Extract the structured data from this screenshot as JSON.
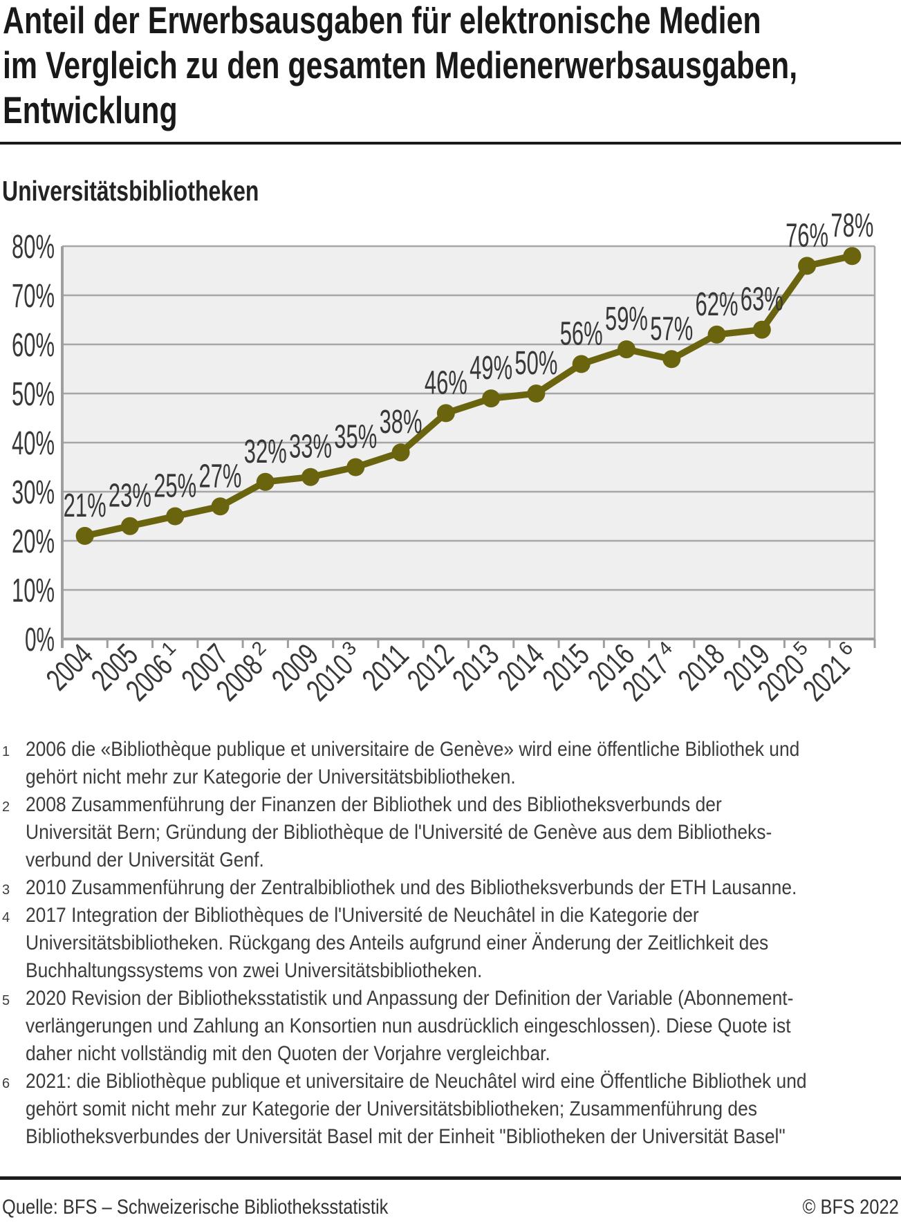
{
  "title": {
    "lines": [
      "Anteil der Erwerbsausgaben für elektronische Medien",
      "im Vergleich zu den gesamten Medienerwerbsausgaben,",
      "Entwicklung"
    ]
  },
  "subtitle": "Universitätsbibliotheken",
  "chart_data": {
    "type": "line",
    "title": "Universitätsbibliotheken",
    "categories": [
      "2004",
      "2005",
      "2006",
      "2007",
      "2008",
      "2009",
      "2010",
      "2011",
      "2012",
      "2013",
      "2014",
      "2015",
      "2016",
      "2017",
      "2018",
      "2019",
      "2020",
      "2021"
    ],
    "category_superscripts": {
      "2006": "1",
      "2008": "2",
      "2010": "3",
      "2017": "4",
      "2020": "5",
      "2021": "6"
    },
    "series": [
      {
        "name": "Universitätsbibliotheken",
        "values": [
          21,
          23,
          25,
          27,
          32,
          33,
          35,
          38,
          46,
          49,
          50,
          56,
          59,
          57,
          62,
          63,
          76,
          78
        ]
      }
    ],
    "data_labels": [
      "21%",
      "23%",
      "25%",
      "27%",
      "32%",
      "33%",
      "35%",
      "38%",
      "46%",
      "49%",
      "50%",
      "56%",
      "59%",
      "57%",
      "62%",
      "63%",
      "76%",
      "78%"
    ],
    "unit": "%",
    "xlabel": "",
    "ylabel": "",
    "ylim": [
      0,
      80
    ],
    "ytick_step": 10,
    "yticks": [
      "0%",
      "10%",
      "20%",
      "30%",
      "40%",
      "50%",
      "60%",
      "70%",
      "80%"
    ],
    "grid": "horizontal",
    "legend": "none",
    "colors": {
      "line": "#6b640f",
      "plot_bg": "#efefef",
      "grid": "#a6a6a6",
      "axis": "#9e9e9e",
      "label_text": "#383838"
    }
  },
  "footnotes": [
    {
      "num": "1",
      "lines": [
        "2006 die «Bibliothèque publique et universitaire de Genève» wird eine öffentliche Bibliothek und",
        "gehört nicht mehr zur Kategorie der Universitätsbibliotheken."
      ]
    },
    {
      "num": "2",
      "lines": [
        "2008 Zusammenführung der Finanzen der Bibliothek und des Bibliotheksverbunds der",
        "Universität Bern; Gründung der Bibliothèque de l'Université de Genève aus dem Bibliotheks-",
        "verbund der Universität Genf."
      ]
    },
    {
      "num": "3",
      "lines": [
        "2010 Zusammenführung der Zentralbibliothek und des Bibliotheksverbunds der ETH Lausanne."
      ]
    },
    {
      "num": "4",
      "lines": [
        "2017 Integration der Bibliothèques de l'Université de Neuchâtel in die Kategorie der",
        "Universitätsbibliotheken. Rückgang des Anteils aufgrund einer Änderung der Zeitlichkeit des",
        "Buchhaltungssystems von zwei Universitätsbibliotheken."
      ]
    },
    {
      "num": "5",
      "lines": [
        "2020 Revision der Bibliotheksstatistik und Anpassung der Definition der Variable (Abonnement-",
        "verlängerungen und Zahlung an Konsortien nun ausdrücklich eingeschlossen). Diese Quote ist",
        "daher nicht vollständig mit den Quoten der Vorjahre vergleichbar."
      ]
    },
    {
      "num": "6",
      "lines": [
        "2021: die Bibliothèque publique et universitaire de Neuchâtel wird eine Öffentliche Bibliothek und",
        "gehört somit nicht mehr zur Kategorie der Universitätsbibliotheken; Zusammenführung des",
        "Bibliotheksverbundes der Universität Basel mit der Einheit \"Bibliotheken der Universität Basel\""
      ]
    }
  ],
  "footer": {
    "source": "Quelle: BFS – Schweizerische Bibliotheksstatistik",
    "copyright": "© BFS 2022"
  }
}
